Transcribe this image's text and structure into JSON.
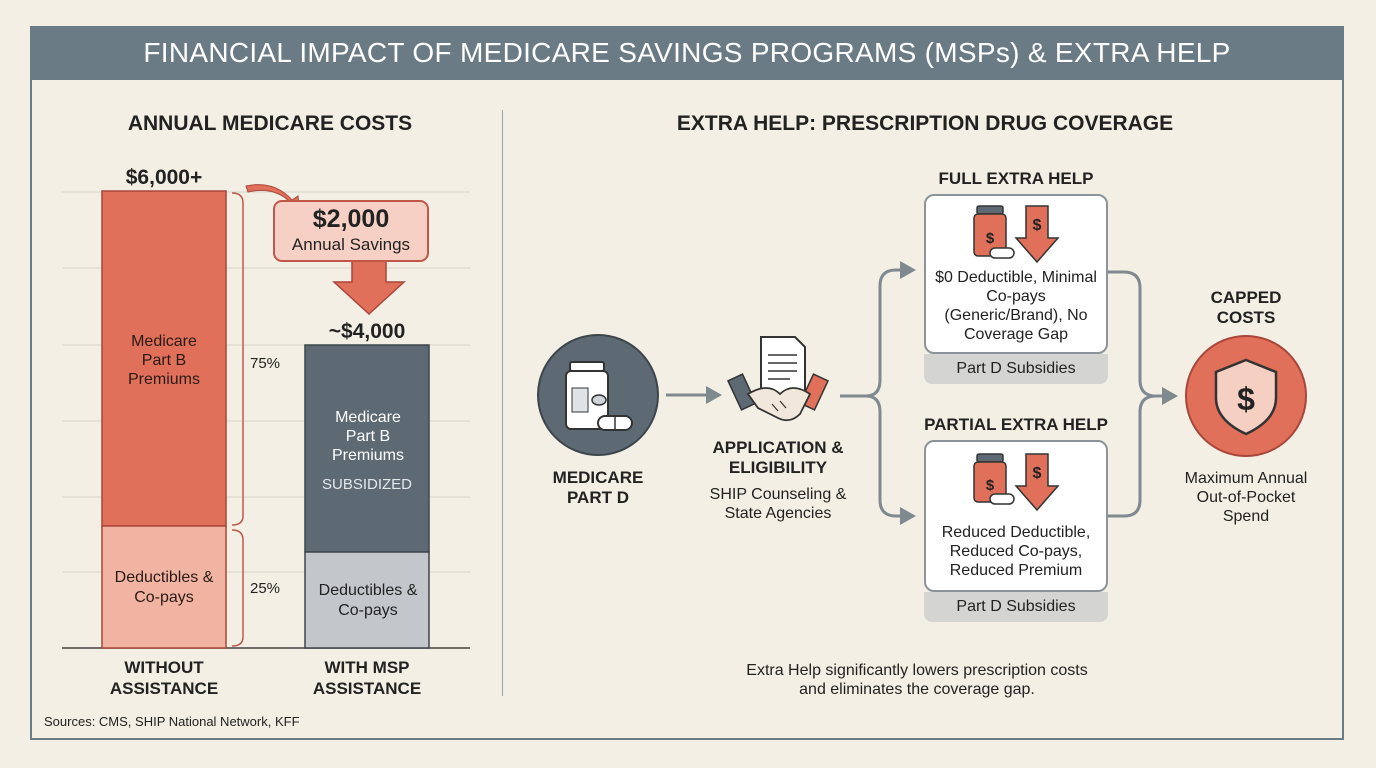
{
  "title": "FINANCIAL IMPACT OF MEDICARE SAVINGS PROGRAMS (MSPs) & EXTRA HELP",
  "left": {
    "heading": "ANNUAL MEDICARE COSTS",
    "without_total": "$6,000+",
    "with_total": "~$4,000",
    "savings_amount": "$2,000",
    "savings_label": "Annual Savings",
    "without_premiums_label": "Medicare Part B Premiums",
    "without_deductibles_label": "Deductibles & Co-pays",
    "with_premiums_label": "Medicare Part B Premiums",
    "with_subsidized_label": "SUBSIDIZED",
    "with_deductibles_label": "Deductibles & Co-pays",
    "pct_premiums": "75%",
    "pct_deductibles": "25%",
    "without_caption": "WITHOUT ASSISTANCE",
    "with_caption": "WITH MSP ASSISTANCE",
    "sources": "Sources: CMS, SHIP National Network, KFF"
  },
  "right": {
    "heading": "EXTRA HELP: PRESCRIPTION DRUG COVERAGE",
    "start_label": "MEDICARE PART D",
    "app_title": "APPLICATION & ELIGIBILITY",
    "app_desc": "SHIP Counseling & State Agencies",
    "full_title": "FULL EXTRA HELP",
    "full_desc": "$0 Deductible, Minimal Co-pays (Generic/Brand), No Coverage Gap",
    "full_sub": "Part D Subsidies",
    "partial_title": "PARTIAL EXTRA HELP",
    "partial_desc": "Reduced Deductible, Reduced Co-pays, Reduced Premium",
    "partial_sub": "Part D Subsidies",
    "capped_title": "CAPPED COSTS",
    "capped_desc": "Maximum Annual Out-of-Pocket Spend",
    "footnote": "Extra Help significantly lowers prescription costs and eliminates the coverage gap."
  },
  "colors": {
    "accent": "#e0705a",
    "accent_light": "#f2b4a2",
    "slate": "#5e6a73",
    "gray": "#c3c7cb",
    "header": "#6b7b86"
  },
  "icons": [
    "pill-bottle-icon",
    "document-icon",
    "handshake-icon",
    "dollar-arrow-down-icon",
    "shield-dollar-icon",
    "arrow-right-icon"
  ]
}
